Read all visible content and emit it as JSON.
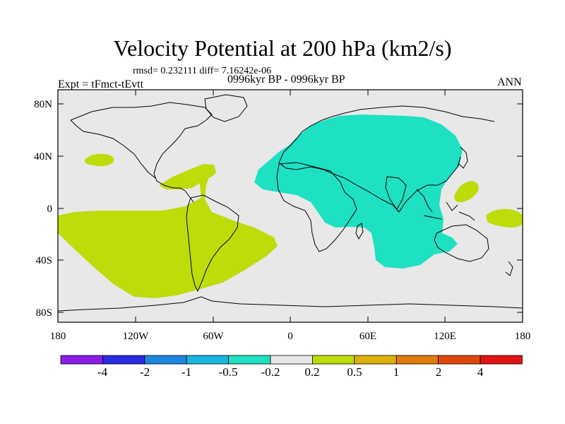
{
  "header": {
    "title": "Velocity Potential at 200 hPa (km2/s)",
    "stats": "rmsd= 0.232111 diff= 7.16242e-06",
    "experiment": "Expt = tFmct-tEvtt",
    "period": "0996kyr BP - 0996kyr BP",
    "season": "ANN"
  },
  "axes": {
    "y_ticks": [
      "80N",
      "40N",
      "0",
      "40S",
      "80S"
    ],
    "x_ticks": [
      "180",
      "120W",
      "60W",
      "0",
      "60E",
      "120E",
      "180"
    ]
  },
  "colorbar": {
    "labels": [
      "-4",
      "-2",
      "-1",
      "-0.5",
      "-0.2",
      "0.2",
      "0.5",
      "1",
      "2",
      "4"
    ],
    "colors": [
      "#8a1de6",
      "#2a2ae0",
      "#1a86e0",
      "#16b6e0",
      "#1ee0c2",
      "#e8e8e8",
      "#bedb0a",
      "#e0b00a",
      "#e07a0a",
      "#e0460a",
      "#e01212"
    ]
  },
  "map": {
    "ocean_color": "#e8e8e8",
    "positive_color": "#bedb0a",
    "negative_color": "#1ee0c2"
  }
}
